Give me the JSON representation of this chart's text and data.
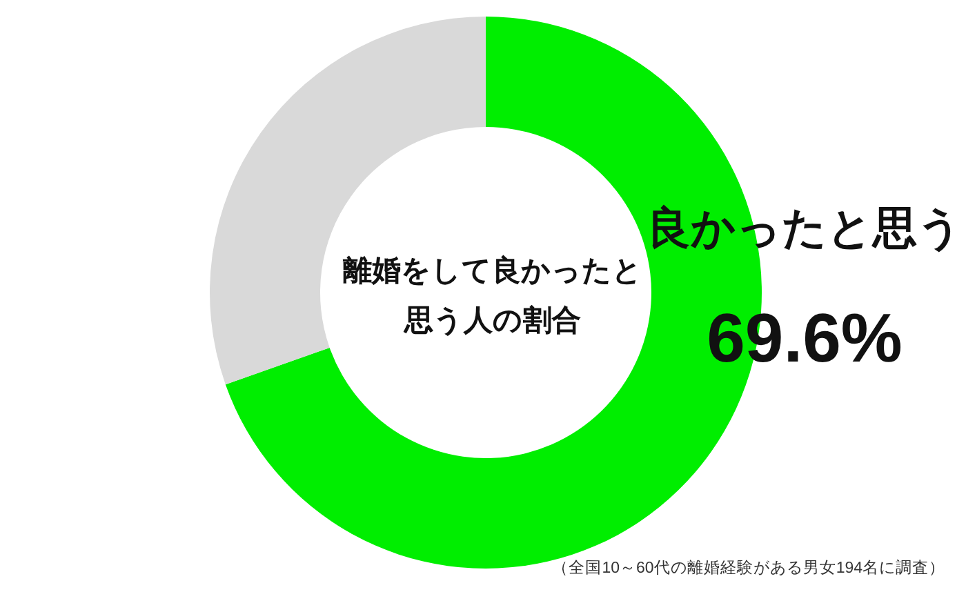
{
  "chart_data": {
    "type": "donut",
    "title": "離婚をして良かったと思う人の割合",
    "categories": [
      "良かったと思う",
      null
    ],
    "values": [
      69.6,
      30.4
    ],
    "colors": [
      "#00ee00",
      "#d9d9d9"
    ],
    "value_labels": [
      "69.6%",
      null
    ],
    "annotations": [
      "（全国10～60代の離婚経験がある男女194名に調査）"
    ]
  }
}
